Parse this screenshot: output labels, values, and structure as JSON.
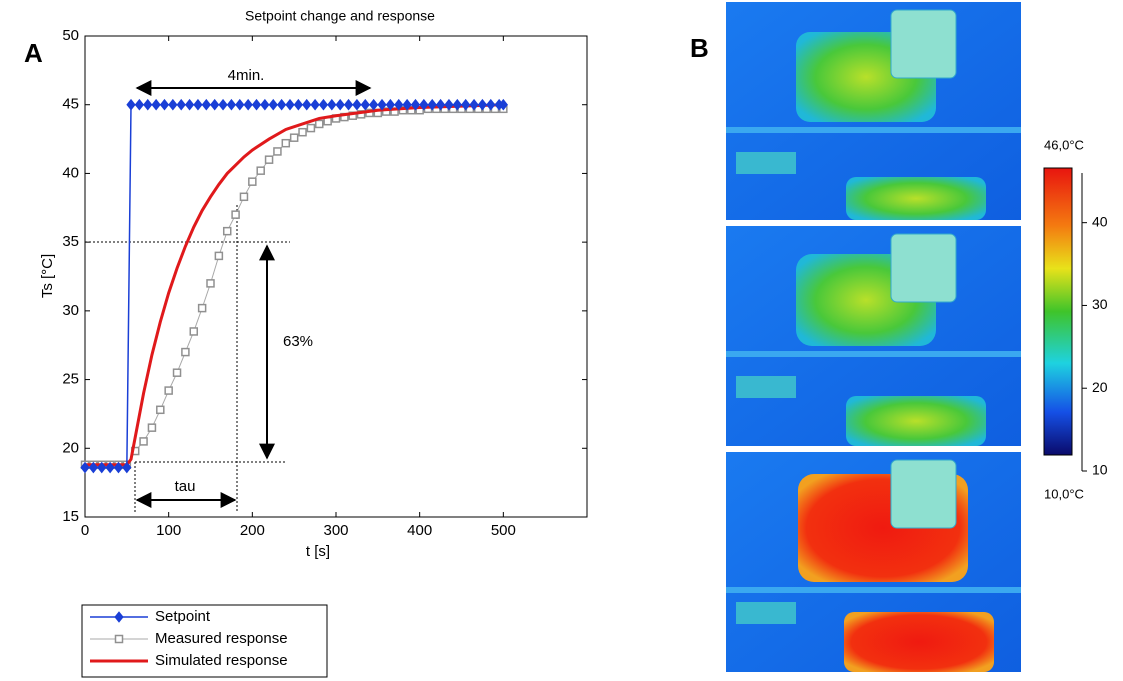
{
  "panel_labels": [
    "A",
    "B"
  ],
  "chart_data": {
    "type": "line",
    "title": "Setpoint change and response",
    "x_label": "t [s]",
    "y_label": "Ts [°C]",
    "xlim": [
      0,
      600
    ],
    "xticks": [
      0,
      100,
      200,
      300,
      400,
      500
    ],
    "ylim": [
      15,
      50
    ],
    "yticks": [
      15,
      20,
      25,
      30,
      35,
      40,
      45,
      50
    ],
    "annotations": [
      "4min.",
      "63%",
      "tau"
    ],
    "series": [
      {
        "name": "Setpoint",
        "color": "#1a3fd6",
        "marker": "diamond",
        "x": [
          0,
          10,
          20,
          30,
          40,
          50,
          55,
          65,
          75,
          85,
          95,
          105,
          115,
          125,
          135,
          145,
          155,
          165,
          175,
          185,
          195,
          205,
          215,
          225,
          235,
          245,
          255,
          265,
          275,
          285,
          295,
          305,
          315,
          325,
          335,
          345,
          355,
          365,
          375,
          385,
          395,
          405,
          415,
          425,
          435,
          445,
          455,
          465,
          475,
          485,
          495,
          500
        ],
        "values": [
          18.6,
          18.6,
          18.6,
          18.6,
          18.6,
          18.6,
          45,
          45,
          45,
          45,
          45,
          45,
          45,
          45,
          45,
          45,
          45,
          45,
          45,
          45,
          45,
          45,
          45,
          45,
          45,
          45,
          45,
          45,
          45,
          45,
          45,
          45,
          45,
          45,
          45,
          45,
          45,
          45,
          45,
          45,
          45,
          45,
          45,
          45,
          45,
          45,
          45,
          45,
          45,
          45,
          45,
          45
        ]
      },
      {
        "name": "Measured response",
        "color": "#a8a8a8",
        "marker": "square",
        "x": [
          0,
          10,
          20,
          30,
          40,
          50,
          60,
          70,
          80,
          90,
          100,
          110,
          120,
          130,
          140,
          150,
          160,
          170,
          180,
          190,
          200,
          210,
          220,
          230,
          240,
          250,
          260,
          270,
          280,
          290,
          300,
          310,
          320,
          330,
          340,
          350,
          360,
          370,
          380,
          390,
          400,
          410,
          420,
          430,
          440,
          450,
          460,
          470,
          480,
          490,
          500
        ],
        "values": [
          18.8,
          18.8,
          18.8,
          18.8,
          18.8,
          18.8,
          19.8,
          20.5,
          21.5,
          22.8,
          24.2,
          25.5,
          27,
          28.5,
          30.2,
          32,
          34,
          35.8,
          37,
          38.3,
          39.4,
          40.2,
          41,
          41.6,
          42.2,
          42.6,
          43,
          43.3,
          43.6,
          43.8,
          44,
          44.1,
          44.2,
          44.3,
          44.4,
          44.4,
          44.5,
          44.5,
          44.6,
          44.6,
          44.6,
          44.7,
          44.7,
          44.7,
          44.7,
          44.7,
          44.7,
          44.7,
          44.7,
          44.7,
          44.7
        ]
      },
      {
        "name": "Simulated response",
        "color": "#e0191b",
        "marker": "none",
        "x": [
          0,
          50,
          55,
          60,
          70,
          80,
          90,
          100,
          110,
          120,
          130,
          140,
          150,
          160,
          170,
          180,
          190,
          200,
          220,
          240,
          260,
          280,
          300,
          350,
          400,
          450,
          500
        ],
        "values": [
          18.8,
          18.8,
          19.2,
          20.8,
          24,
          26.8,
          29.2,
          31.3,
          33.1,
          34.7,
          36.1,
          37.3,
          38.3,
          39.2,
          40,
          40.6,
          41.2,
          41.7,
          42.5,
          43.2,
          43.6,
          44,
          44.2,
          44.6,
          44.8,
          44.9,
          45
        ]
      }
    ]
  },
  "thermal": {
    "max_label": "46,0°C",
    "min_label": "10,0°C",
    "range": [
      10,
      46
    ],
    "ticks": [
      10,
      20,
      30,
      40
    ]
  }
}
